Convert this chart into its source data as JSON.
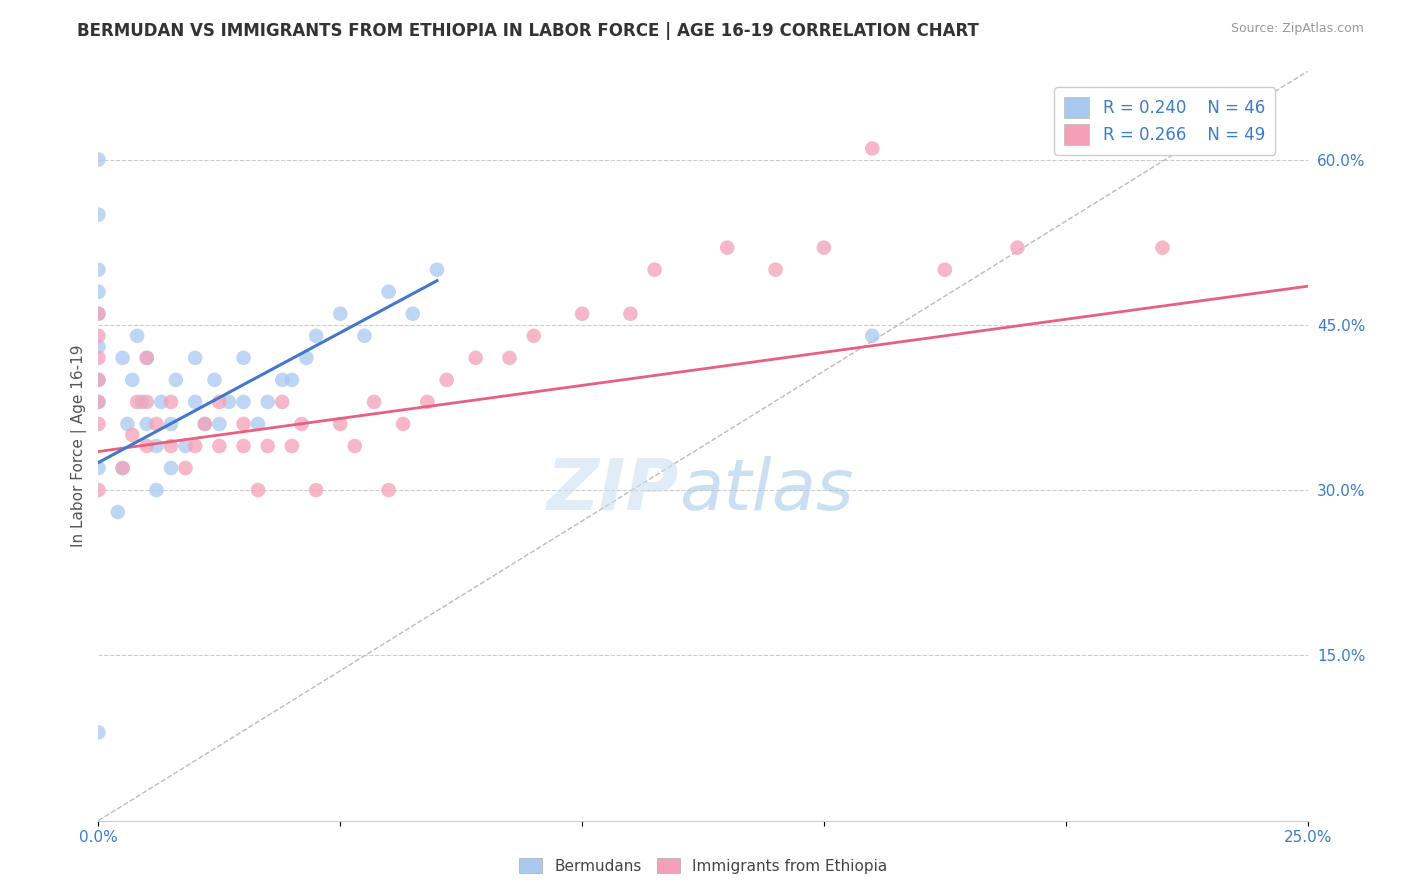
{
  "title": "BERMUDAN VS IMMIGRANTS FROM ETHIOPIA IN LABOR FORCE | AGE 16-19 CORRELATION CHART",
  "source": "Source: ZipAtlas.com",
  "ylabel": "In Labor Force | Age 16-19",
  "xlim": [
    0.0,
    0.25
  ],
  "ylim": [
    0.0,
    0.68
  ],
  "yticks_right": [
    0.15,
    0.3,
    0.45,
    0.6
  ],
  "ytick_right_labels": [
    "15.0%",
    "30.0%",
    "45.0%",
    "60.0%"
  ],
  "r_blue": 0.24,
  "n_blue": 46,
  "r_pink": 0.266,
  "n_pink": 49,
  "blue_color": "#A8C8F0",
  "pink_color": "#F4A0B8",
  "blue_line_color": "#4477CC",
  "pink_line_color": "#E86080",
  "ref_line_color": "#BBBBBB",
  "legend_label_blue": "Bermudans",
  "legend_label_pink": "Immigrants from Ethiopia",
  "background_color": "#FFFFFF",
  "blue_line_x": [
    0.0,
    0.07
  ],
  "blue_line_y": [
    0.325,
    0.49
  ],
  "pink_line_x": [
    0.0,
    0.25
  ],
  "pink_line_y": [
    0.335,
    0.485
  ],
  "blue_scatter_x": [
    0.0,
    0.0,
    0.0,
    0.0,
    0.0,
    0.0,
    0.0,
    0.0,
    0.0,
    0.0,
    0.004,
    0.005,
    0.005,
    0.006,
    0.007,
    0.008,
    0.009,
    0.01,
    0.01,
    0.012,
    0.012,
    0.013,
    0.015,
    0.015,
    0.016,
    0.018,
    0.02,
    0.02,
    0.022,
    0.024,
    0.025,
    0.027,
    0.03,
    0.03,
    0.033,
    0.035,
    0.038,
    0.04,
    0.043,
    0.045,
    0.05,
    0.055,
    0.06,
    0.065,
    0.07,
    0.16
  ],
  "blue_scatter_y": [
    0.6,
    0.55,
    0.5,
    0.48,
    0.46,
    0.43,
    0.4,
    0.38,
    0.32,
    0.08,
    0.28,
    0.32,
    0.42,
    0.36,
    0.4,
    0.44,
    0.38,
    0.36,
    0.42,
    0.3,
    0.34,
    0.38,
    0.32,
    0.36,
    0.4,
    0.34,
    0.38,
    0.42,
    0.36,
    0.4,
    0.36,
    0.38,
    0.38,
    0.42,
    0.36,
    0.38,
    0.4,
    0.4,
    0.42,
    0.44,
    0.46,
    0.44,
    0.48,
    0.46,
    0.5,
    0.44
  ],
  "pink_scatter_x": [
    0.0,
    0.0,
    0.0,
    0.0,
    0.0,
    0.0,
    0.0,
    0.005,
    0.007,
    0.008,
    0.01,
    0.01,
    0.01,
    0.012,
    0.015,
    0.015,
    0.018,
    0.02,
    0.022,
    0.025,
    0.025,
    0.03,
    0.03,
    0.033,
    0.035,
    0.038,
    0.04,
    0.042,
    0.045,
    0.05,
    0.053,
    0.057,
    0.06,
    0.063,
    0.068,
    0.072,
    0.078,
    0.085,
    0.09,
    0.1,
    0.11,
    0.115,
    0.13,
    0.14,
    0.15,
    0.16,
    0.175,
    0.19,
    0.22
  ],
  "pink_scatter_y": [
    0.36,
    0.38,
    0.4,
    0.42,
    0.44,
    0.46,
    0.3,
    0.32,
    0.35,
    0.38,
    0.34,
    0.38,
    0.42,
    0.36,
    0.34,
    0.38,
    0.32,
    0.34,
    0.36,
    0.34,
    0.38,
    0.34,
    0.36,
    0.3,
    0.34,
    0.38,
    0.34,
    0.36,
    0.3,
    0.36,
    0.34,
    0.38,
    0.3,
    0.36,
    0.38,
    0.4,
    0.42,
    0.42,
    0.44,
    0.46,
    0.46,
    0.5,
    0.52,
    0.5,
    0.52,
    0.61,
    0.5,
    0.52,
    0.52
  ],
  "title_fontsize": 12,
  "axis_label_fontsize": 11,
  "tick_fontsize": 11,
  "legend_fontsize": 12,
  "watermark_zip_color": "#C8DFF0",
  "watermark_atlas_color": "#A0C8E8",
  "watermark_alpha": 0.55,
  "watermark_fontsize": 52
}
